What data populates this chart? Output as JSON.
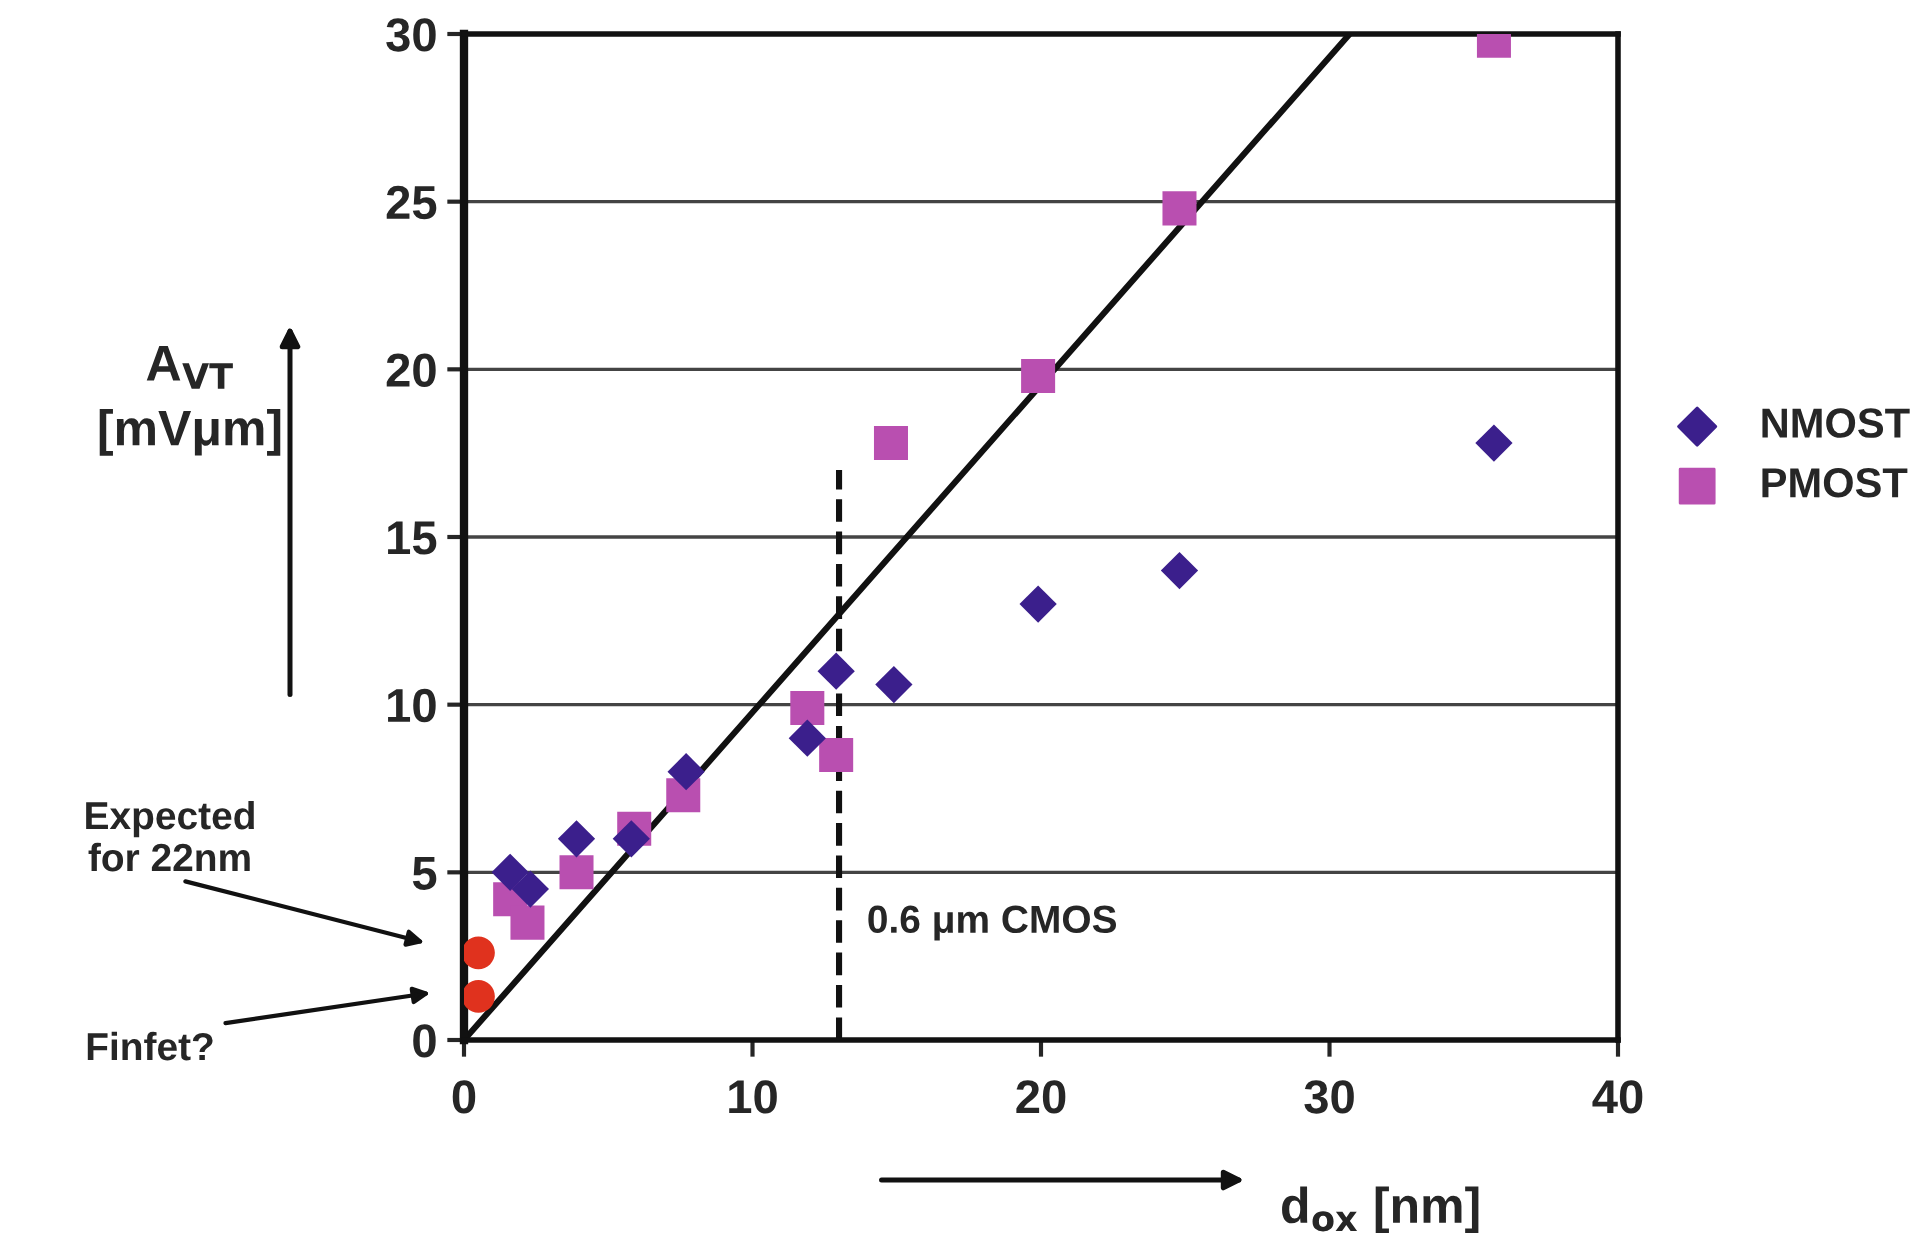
{
  "chart_data": {
    "type": "scatter",
    "xlabel": "d$_{ox}$ [nm]",
    "ylabel": "A$_{VT}$\n[mVμm]",
    "xlim": [
      0,
      40
    ],
    "xticks": [
      0,
      10,
      20,
      30,
      40
    ],
    "ylim": [
      0,
      30
    ],
    "yticks": [
      0,
      5,
      10,
      15,
      20,
      25,
      30
    ],
    "grid": "y",
    "legend": "right",
    "series": [
      {
        "name": "NMOST",
        "color": "#3b1f8c",
        "marker": "diamond",
        "x": [
          1.6,
          2.3,
          3.9,
          5.8,
          7.7,
          11.9,
          12.9,
          14.9,
          19.9,
          24.8,
          35.7
        ],
        "values": [
          5.0,
          4.5,
          6.0,
          6.0,
          8.0,
          9.0,
          11.0,
          10.6,
          13.0,
          14.0,
          17.8
        ]
      },
      {
        "name": "PMOST",
        "color": "#b94fb0",
        "marker": "square",
        "x": [
          1.6,
          2.2,
          3.9,
          5.9,
          7.6,
          11.9,
          12.9,
          14.8,
          19.9,
          24.8,
          35.7
        ],
        "values": [
          4.2,
          3.5,
          5.0,
          6.3,
          7.3,
          9.9,
          8.5,
          17.8,
          19.8,
          24.8,
          29.8
        ]
      },
      {
        "color": "#e0321e",
        "marker": "circle",
        "x": [
          0.5,
          0.5
        ],
        "values": [
          2.6,
          1.3
        ]
      },
      {
        "type": "line",
        "color": "#111111",
        "line_style": "solid",
        "marker": "none",
        "x": [
          0,
          30.7
        ],
        "values": [
          0,
          30
        ]
      },
      {
        "type": "line",
        "color": "#111111",
        "line_style": "dashed",
        "marker": "none",
        "x": [
          13,
          13
        ],
        "values": [
          0,
          17
        ]
      }
    ],
    "annotations": [
      "Expected\nfor 22nm",
      "Finfet?",
      {
        "text": "0.6 μm CMOS",
        "x": 13,
        "y": 3.5
      }
    ]
  }
}
